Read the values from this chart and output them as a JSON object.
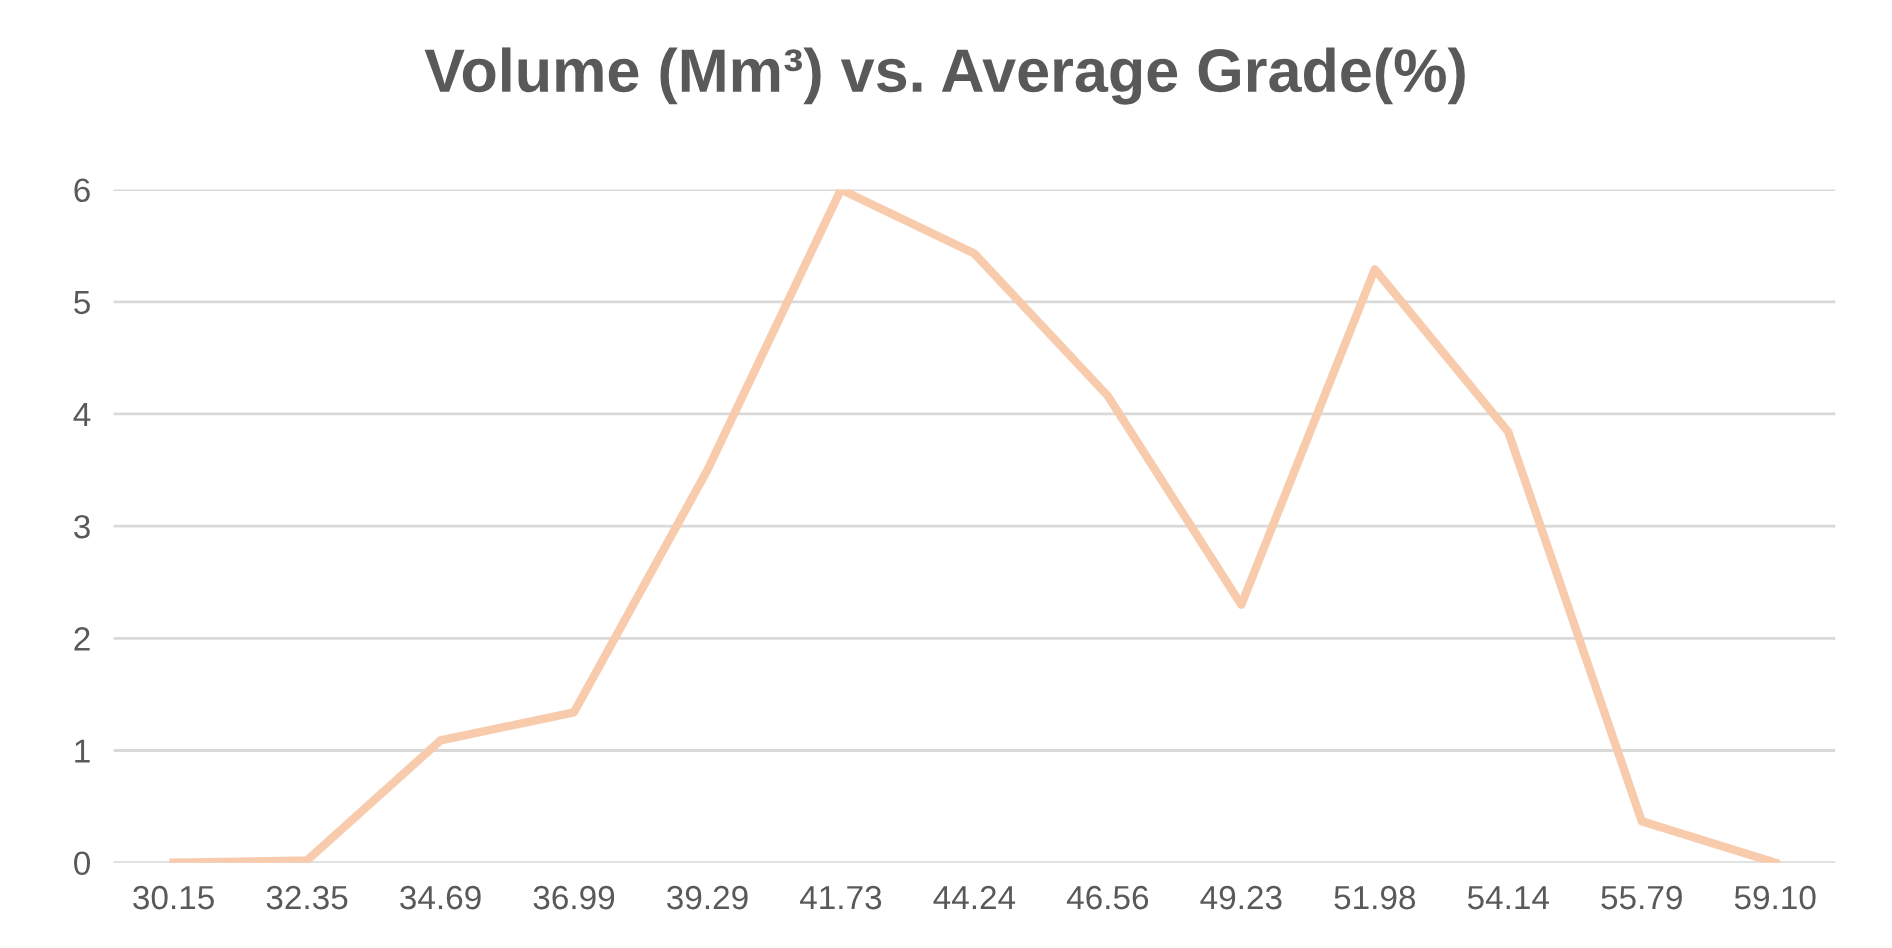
{
  "chart_data": {
    "type": "line",
    "title": "Volume (Mm³) vs. Average Grade(%)",
    "categories": [
      "30.15",
      "32.35",
      "34.69",
      "36.99",
      "39.29",
      "41.73",
      "44.24",
      "46.56",
      "49.23",
      "51.98",
      "54.14",
      "55.79",
      "59.10"
    ],
    "series": [
      {
        "color": "#f8cbad",
        "values": [
          0,
          0.02,
          1.09,
          1.34,
          3.5,
          6.0,
          5.43,
          4.16,
          2.3,
          5.29,
          3.84,
          0.37,
          0
        ]
      }
    ],
    "ylim": [
      0,
      6
    ],
    "yticks": [
      0,
      1,
      2,
      3,
      4,
      5,
      6
    ],
    "grid": "y",
    "marker": "none",
    "line_style": "solid"
  }
}
